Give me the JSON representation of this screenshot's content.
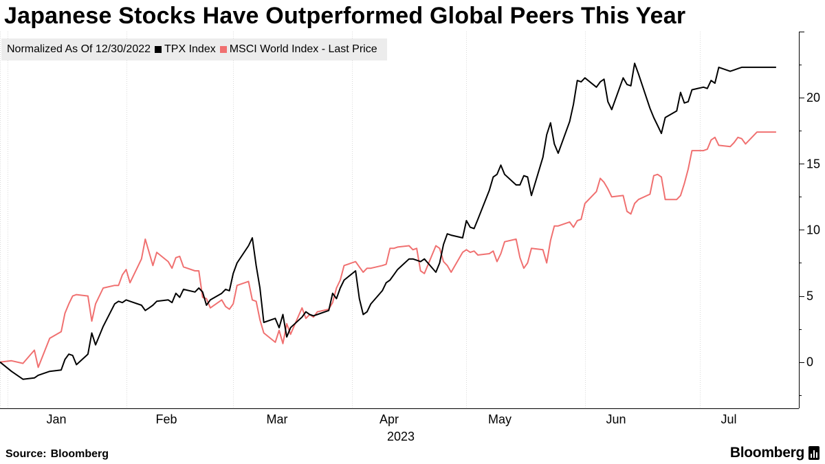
{
  "title": "Japanese Stocks Have Outperformed Global Peers This Year",
  "legend": {
    "note": "Normalized As Of 12/30/2022",
    "entries": [
      {
        "name": "TPX Index",
        "color": "#000000"
      },
      {
        "name": "MSCI World Index - Last Price",
        "color": "#f07070"
      }
    ]
  },
  "footer": {
    "source_label": "Source:",
    "source_value": "Bloomberg",
    "brand": "Bloomberg"
  },
  "chart_data": {
    "type": "line",
    "title": "Japanese Stocks Have Outperformed Global Peers This Year",
    "xlabel": "2023",
    "ylabel": "",
    "x_tick_labels": [
      "Jan",
      "Feb",
      "Mar",
      "Apr",
      "May",
      "Jun",
      "Jul"
    ],
    "y_ticks": [
      0,
      5,
      10,
      15,
      20
    ],
    "ylim": [
      -3.5,
      25
    ],
    "grid": "vertical",
    "legend_position": "top-left",
    "x_unit": "day of year 2023 (0 = 12/30/2022)",
    "series": [
      {
        "name": "TPX Index",
        "color": "#000000",
        "x": [
          0,
          3,
          6,
          9,
          10,
          13,
          16,
          17,
          18,
          19,
          20,
          23,
          24,
          25,
          27,
          30,
          31,
          32,
          33,
          34,
          37,
          38,
          39,
          40,
          41,
          44,
          45,
          46,
          47,
          48,
          51,
          52,
          53,
          54,
          55,
          58,
          59,
          60,
          61,
          62,
          65,
          66,
          67,
          68,
          69,
          72,
          73,
          74,
          75,
          76,
          79,
          80,
          81,
          82,
          83,
          86,
          87,
          88,
          89,
          90,
          93,
          94,
          95,
          96,
          97,
          100,
          101,
          102,
          103,
          104,
          107,
          108,
          109,
          110,
          111,
          114,
          115,
          116,
          117,
          118,
          121,
          122,
          123,
          124,
          125,
          128,
          129,
          130,
          131,
          132,
          135,
          136,
          137,
          138,
          139,
          142,
          143,
          144,
          145,
          146,
          149,
          150,
          151,
          152,
          153,
          156,
          157,
          158,
          159,
          160,
          163,
          164,
          165,
          166,
          167,
          170,
          171,
          172,
          173,
          174,
          177,
          178,
          179,
          180,
          181,
          184,
          185,
          186,
          187,
          188,
          191,
          192,
          193,
          194,
          195,
          198,
          199,
          200,
          201,
          202,
          203
        ],
        "values": [
          0.0,
          -0.7,
          -1.3,
          -1.2,
          -1.0,
          -0.7,
          -0.6,
          0.2,
          0.6,
          0.5,
          -0.2,
          0.6,
          2.2,
          1.3,
          2.7,
          4.4,
          4.6,
          4.5,
          4.7,
          4.6,
          4.3,
          3.9,
          4.1,
          4.3,
          4.6,
          4.7,
          4.5,
          5.2,
          4.9,
          5.5,
          5.3,
          5.6,
          5.3,
          4.3,
          4.7,
          5.2,
          5.5,
          5.4,
          6.7,
          7.5,
          8.8,
          9.4,
          7.3,
          5.6,
          3.0,
          3.3,
          2.6,
          3.6,
          1.9,
          2.6,
          3.4,
          3.8,
          3.6,
          3.5,
          3.6,
          3.9,
          5.2,
          4.8,
          5.6,
          6.2,
          6.9,
          4.8,
          3.6,
          3.8,
          4.4,
          5.4,
          6.0,
          6.2,
          6.6,
          7.0,
          7.8,
          7.8,
          7.7,
          7.6,
          7.8,
          6.8,
          7.5,
          8.9,
          9.7,
          9.6,
          9.4,
          10.7,
          10.2,
          10.1,
          10.8,
          13.0,
          14.0,
          14.2,
          14.9,
          14.2,
          13.4,
          13.4,
          14.1,
          14.0,
          12.6,
          15.5,
          17.2,
          18.1,
          16.5,
          15.8,
          18.2,
          19.5,
          21.3,
          21.2,
          21.5,
          20.8,
          21.2,
          21.4,
          19.7,
          19.1,
          21.5,
          21.0,
          20.9,
          22.6,
          21.8,
          19.2,
          18.5,
          17.9,
          17.3,
          18.5,
          19.0,
          20.4,
          19.6,
          19.7,
          20.6,
          20.8,
          20.7,
          21.3,
          21.1,
          22.3,
          22.0,
          22.1,
          22.2,
          22.3,
          22.3,
          22.3,
          22.3,
          22.3,
          22.3,
          22.3,
          22.3
        ]
      },
      {
        "name": "MSCI World Index - Last Price",
        "color": "#f07070",
        "x": [
          0,
          3,
          6,
          9,
          10,
          13,
          16,
          17,
          18,
          19,
          20,
          23,
          24,
          25,
          27,
          30,
          31,
          32,
          33,
          34,
          37,
          38,
          39,
          40,
          41,
          44,
          45,
          46,
          47,
          48,
          51,
          52,
          53,
          54,
          55,
          58,
          59,
          60,
          61,
          62,
          65,
          66,
          67,
          68,
          69,
          72,
          73,
          74,
          75,
          76,
          79,
          80,
          81,
          82,
          83,
          86,
          87,
          88,
          89,
          90,
          93,
          94,
          95,
          96,
          97,
          100,
          101,
          102,
          103,
          104,
          107,
          108,
          109,
          110,
          111,
          114,
          115,
          116,
          117,
          118,
          121,
          122,
          123,
          124,
          125,
          128,
          129,
          130,
          131,
          132,
          135,
          136,
          137,
          138,
          139,
          142,
          143,
          144,
          145,
          146,
          149,
          150,
          151,
          152,
          153,
          156,
          157,
          158,
          159,
          160,
          163,
          164,
          165,
          166,
          167,
          170,
          171,
          172,
          173,
          174,
          177,
          178,
          179,
          180,
          181,
          184,
          185,
          186,
          187,
          188,
          191,
          192,
          193,
          194,
          195,
          198,
          199,
          200,
          201,
          202,
          203
        ],
        "values": [
          0.0,
          0.1,
          -0.1,
          0.9,
          -0.4,
          1.8,
          2.3,
          3.7,
          4.4,
          5.0,
          5.1,
          5.0,
          3.1,
          4.4,
          5.6,
          5.8,
          5.8,
          6.6,
          7.0,
          6.0,
          7.8,
          9.3,
          8.3,
          7.3,
          8.3,
          7.6,
          7.1,
          7.9,
          8.0,
          7.2,
          6.9,
          6.9,
          4.9,
          4.8,
          4.1,
          4.7,
          4.2,
          4.0,
          4.4,
          5.8,
          6.1,
          4.7,
          4.6,
          3.2,
          2.2,
          1.5,
          2.4,
          1.4,
          2.9,
          2.1,
          4.1,
          3.3,
          3.6,
          3.4,
          3.8,
          4.0,
          4.5,
          5.6,
          6.2,
          7.3,
          7.6,
          7.2,
          6.8,
          7.1,
          7.1,
          7.3,
          7.4,
          8.6,
          8.6,
          8.7,
          8.8,
          8.5,
          8.6,
          6.9,
          6.7,
          8.8,
          8.6,
          7.6,
          7.3,
          6.8,
          8.3,
          8.5,
          8.3,
          8.4,
          8.1,
          8.2,
          8.4,
          7.6,
          8.2,
          9.1,
          9.3,
          7.9,
          7.1,
          7.5,
          8.6,
          8.5,
          7.5,
          9.2,
          10.3,
          10.3,
          10.6,
          10.2,
          10.7,
          10.8,
          12.0,
          12.9,
          13.9,
          13.6,
          13.1,
          12.5,
          12.6,
          11.4,
          11.2,
          12.0,
          12.3,
          12.7,
          14.1,
          14.2,
          14.0,
          12.3,
          12.3,
          12.6,
          13.5,
          14.6,
          16.0,
          16.0,
          16.1,
          16.8,
          17.0,
          16.4,
          16.3,
          16.6,
          17.0,
          16.9,
          16.5,
          17.4,
          17.4,
          17.4,
          17.4,
          17.4,
          17.4
        ]
      }
    ]
  }
}
